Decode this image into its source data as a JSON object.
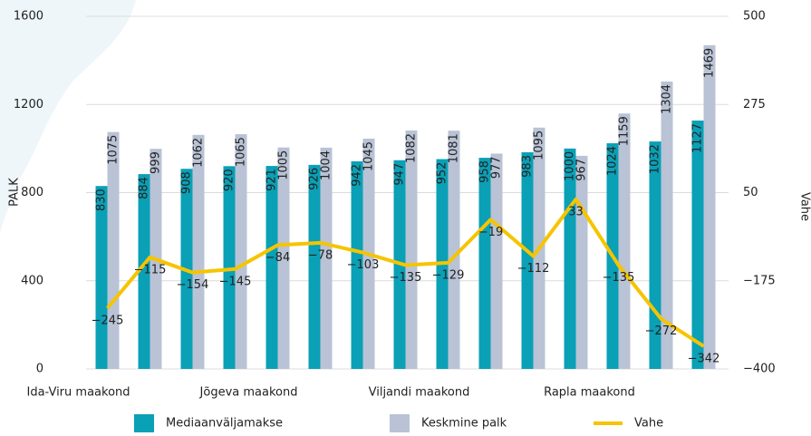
{
  "chart_data": {
    "type": "bar_line",
    "categories": [
      "Ida-Viru maakond",
      null,
      null,
      null,
      "Jõgeva maakond",
      null,
      null,
      null,
      "Viljandi maakond",
      null,
      null,
      null,
      "Rapla maakond",
      null,
      null
    ],
    "y_label": "PALK",
    "y2_label": "Vahe",
    "series": [
      {
        "name": "Mediaanväljamakse",
        "color": "#0aa0b6",
        "values": [
          830,
          884,
          908,
          920,
          921,
          926,
          942,
          947,
          952,
          958,
          983,
          1000,
          1024,
          1032,
          1127
        ]
      },
      {
        "name": "Keskmine palk",
        "color": "#b9c3d5",
        "values": [
          1075,
          999,
          1062,
          1065,
          1005,
          1004,
          1045,
          1082,
          1081,
          977,
          1095,
          967,
          1159,
          1304,
          1469
        ]
      },
      {
        "name": "Vahe",
        "color": "#f6c400",
        "axis": "y2",
        "values": [
          -245,
          -115,
          -154,
          -145,
          -84,
          -78,
          -103,
          -135,
          -129,
          -19,
          -112,
          33,
          -135,
          -272,
          -342
        ],
        "value_labels": [
          "−245",
          "−115",
          "−154",
          "−145",
          "−84",
          "−78",
          "−103",
          "−135",
          "−129",
          "−19",
          "−112",
          "33",
          "−135",
          "−272",
          "−342"
        ]
      }
    ],
    "ylim": [
      0,
      1600
    ],
    "yticks": [
      0,
      400,
      800,
      1200,
      1600
    ],
    "y2lim": [
      -400,
      500
    ],
    "y2ticks": [
      {
        "value": -400,
        "label": "−400"
      },
      {
        "value": -175,
        "label": "−175"
      },
      50,
      275,
      500
    ],
    "grid": true
  }
}
